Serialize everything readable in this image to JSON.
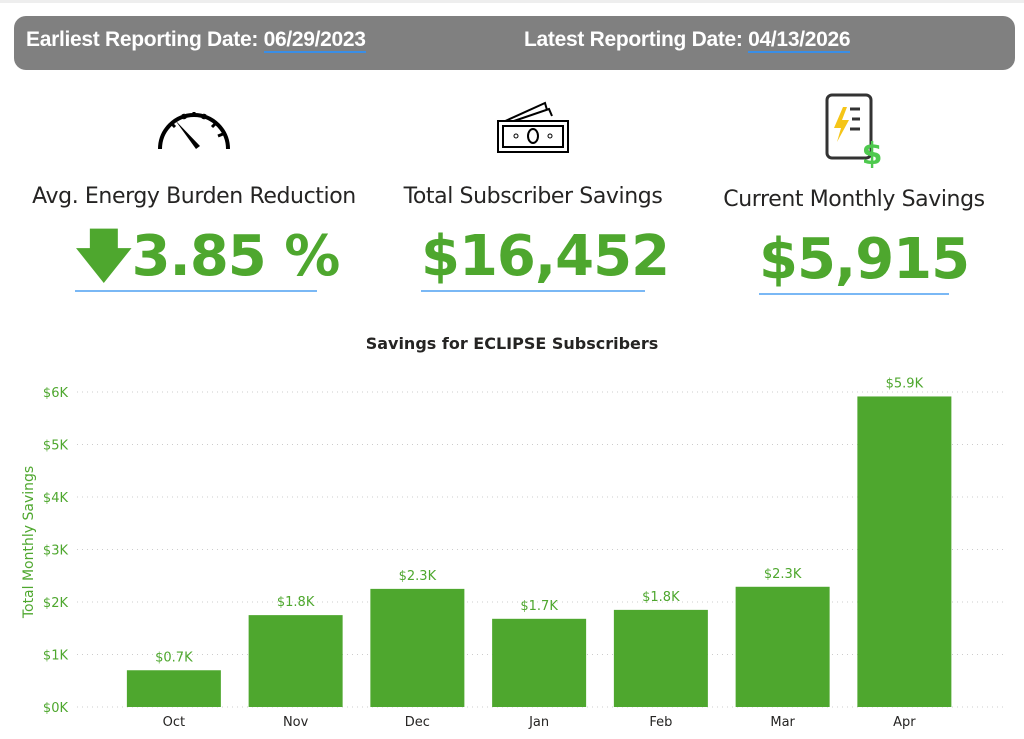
{
  "header": {
    "earliest_label": "Earliest Reporting Date:",
    "earliest_value": "06/29/2023",
    "latest_label": "Latest Reporting Date:",
    "latest_value": "04/13/2026"
  },
  "kpis": [
    {
      "icon": "speedometer-icon",
      "label": "Avg. Energy Burden Reduction",
      "arrow": "down-arrow-icon",
      "value": "3.85 %"
    },
    {
      "icon": "cash-icon",
      "label": "Total Subscriber Savings",
      "value": "$16,452"
    },
    {
      "icon": "energy-bill-dollar-icon",
      "label": "Current Monthly Savings",
      "value": "$5,915"
    }
  ],
  "colors": {
    "accent": "#4ea72e",
    "bar": "#4ea72e",
    "banner": "#808080",
    "underline": "#7ab8f5"
  },
  "chart_data": {
    "type": "bar",
    "title": "Savings for ECLIPSE Subscribers",
    "ylabel": "Total Monthly Savings",
    "xlabel": "",
    "categories": [
      "Oct",
      "Nov",
      "Dec",
      "Jan",
      "Feb",
      "Mar",
      "Apr"
    ],
    "values": [
      700,
      1750,
      2250,
      1680,
      1850,
      2290,
      5915
    ],
    "data_labels": [
      "$0.7K",
      "$1.8K",
      "$2.3K",
      "$1.7K",
      "$1.8K",
      "$2.3K",
      "$5.9K"
    ],
    "ylim": [
      0,
      6000
    ],
    "yticks": [
      "$0K",
      "$1K",
      "$2K",
      "$3K",
      "$4K",
      "$5K",
      "$6K"
    ],
    "grid": true,
    "legend": "none"
  }
}
